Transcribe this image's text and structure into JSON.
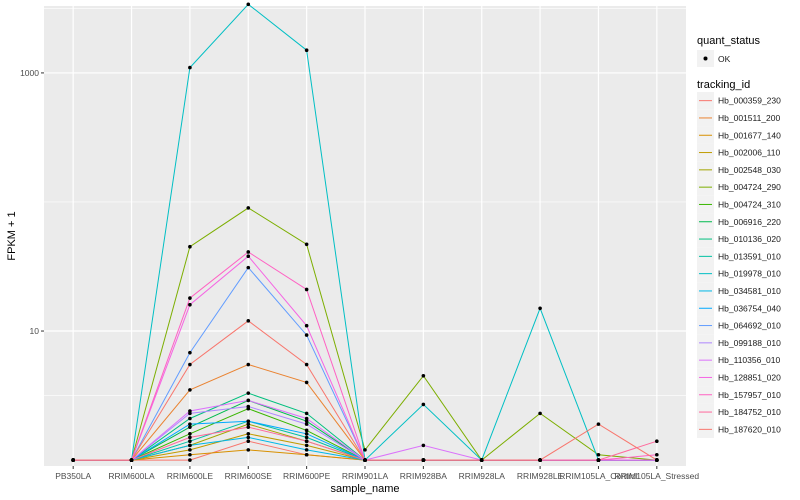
{
  "chart_data": {
    "type": "line",
    "xlabel": "sample_name",
    "ylabel": "FPKM + 1",
    "y_scale": "log10",
    "ylim": [
      0.9,
      3300
    ],
    "y_ticks": [
      10,
      1000
    ],
    "y_tick_labels": [
      "10",
      "1000"
    ],
    "categories": [
      "PB350LA",
      "RRIM600LA",
      "RRIM600LE",
      "RRIM600SE",
      "RRIM600PE",
      "RRIM901LA",
      "RRIM928BA",
      "RRIM928LA",
      "RRIM928LE",
      "RRIM105LA_Control",
      "RRIM105LA_Stressed"
    ],
    "legend_position": "right",
    "legend_quant_title": "quant_status",
    "legend_quant_ok": "OK",
    "legend_title": "tracking_id",
    "series": [
      {
        "name": "Hb_000359_230",
        "color": "#F8766D",
        "values": [
          1,
          1,
          1,
          1.4,
          1.1,
          1,
          1,
          1,
          1,
          1,
          1
        ]
      },
      {
        "name": "Hb_001511_200",
        "color": "#EA8331",
        "values": [
          1,
          1,
          3.5,
          5.5,
          4,
          1,
          1,
          1,
          1,
          1,
          1
        ]
      },
      {
        "name": "Hb_001677_140",
        "color": "#D89000",
        "values": [
          1,
          1,
          1.1,
          1.2,
          1.1,
          1,
          1,
          1,
          1,
          1,
          1
        ]
      },
      {
        "name": "Hb_002006_110",
        "color": "#C09B00",
        "values": [
          1,
          1,
          1.2,
          1.6,
          1.3,
          1,
          1,
          1,
          1,
          1,
          1
        ]
      },
      {
        "name": "Hb_002548_030",
        "color": "#A3A500",
        "values": [
          1,
          1,
          1.3,
          1.9,
          1.4,
          1,
          1,
          1,
          1,
          1,
          1
        ]
      },
      {
        "name": "Hb_004724_290",
        "color": "#7CAE00",
        "values": [
          1,
          1,
          45,
          90,
          47,
          1.2,
          4.5,
          1,
          2.3,
          1.1,
          1
        ]
      },
      {
        "name": "Hb_004724_310",
        "color": "#39B600",
        "values": [
          1,
          1,
          1.6,
          2.5,
          1.7,
          1,
          1,
          1,
          1,
          1,
          1
        ]
      },
      {
        "name": "Hb_006916_220",
        "color": "#00BB4E",
        "values": [
          1,
          1,
          1.8,
          2.9,
          2,
          1,
          1,
          1,
          1,
          1,
          1
        ]
      },
      {
        "name": "Hb_010136_020",
        "color": "#00BF7D",
        "values": [
          1,
          1,
          2.1,
          3.3,
          2.3,
          1,
          1,
          1,
          1,
          1,
          1
        ]
      },
      {
        "name": "Hb_013591_010",
        "color": "#00C1A3",
        "values": [
          1,
          1,
          1.4,
          2,
          1.5,
          1,
          1,
          1,
          1,
          1,
          1
        ]
      },
      {
        "name": "Hb_019978_010",
        "color": "#00BFC4",
        "values": [
          1,
          1,
          1100,
          3400,
          1500,
          1,
          2.7,
          1,
          15,
          1,
          1
        ]
      },
      {
        "name": "Hb_034581_010",
        "color": "#00B8E7",
        "values": [
          1,
          1,
          1.3,
          1.5,
          1.2,
          1,
          1,
          1,
          1,
          1,
          1
        ]
      },
      {
        "name": "Hb_036754_040",
        "color": "#00A9FF",
        "values": [
          1,
          1,
          1.9,
          2,
          1.6,
          1,
          1,
          1,
          1,
          1,
          1
        ]
      },
      {
        "name": "Hb_064692_010",
        "color": "#619CFF",
        "values": [
          1,
          1,
          6.8,
          31,
          9.3,
          1,
          1,
          1,
          1,
          1,
          1
        ]
      },
      {
        "name": "Hb_099188_010",
        "color": "#AE87FF",
        "values": [
          1,
          1,
          2.3,
          2.6,
          1.9,
          1,
          1,
          1,
          1,
          1,
          1
        ]
      },
      {
        "name": "Hb_110356_010",
        "color": "#DB72FB",
        "values": [
          1,
          1,
          2.4,
          2.9,
          2.1,
          1,
          1.3,
          1,
          1,
          1,
          1
        ]
      },
      {
        "name": "Hb_128851_020",
        "color": "#F564E3",
        "values": [
          1,
          1,
          16,
          38,
          11,
          1,
          1,
          1,
          1,
          1,
          1
        ]
      },
      {
        "name": "Hb_157957_010",
        "color": "#FF61C3",
        "values": [
          1,
          1,
          18,
          41,
          21,
          1,
          1,
          1,
          1,
          1,
          1.1
        ]
      },
      {
        "name": "Hb_184752_010",
        "color": "#FF699C",
        "values": [
          1,
          1,
          1.5,
          1.8,
          1.4,
          1,
          1,
          1,
          1,
          1,
          1.4
        ]
      },
      {
        "name": "Hb_187620_010",
        "color": "#F8766D",
        "values": [
          1,
          1,
          5.5,
          12,
          5.5,
          1,
          1,
          1,
          1,
          1.9,
          1
        ]
      }
    ]
  }
}
